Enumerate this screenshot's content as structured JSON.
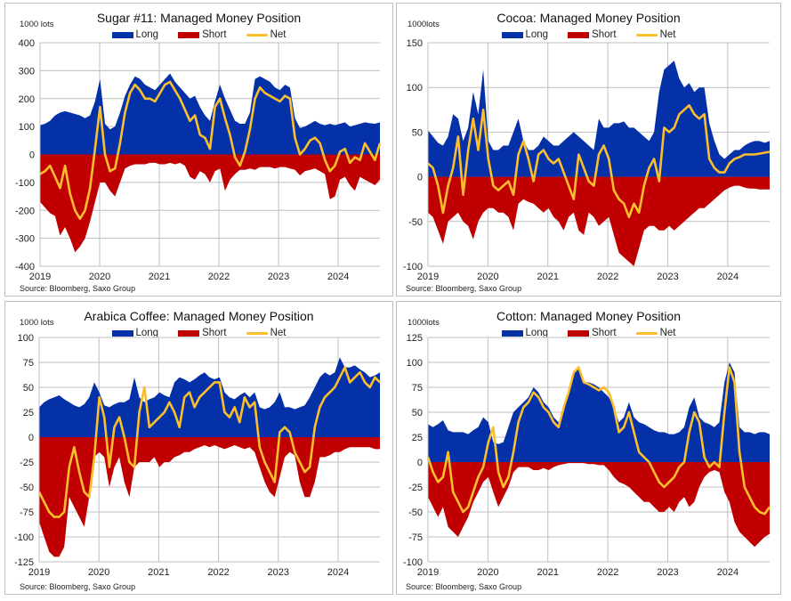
{
  "colors": {
    "long": "#0431A8",
    "short": "#C00000",
    "net": "#FBBF2E",
    "grid": "#BFBFBF"
  },
  "legend": {
    "long": "Long",
    "short": "Short",
    "net": "Net"
  },
  "source": "Source: Bloomberg,  Saxo Group",
  "chart_data": [
    {
      "id": "sugar",
      "type": "area",
      "title": "Sugar #11: Managed Money Position",
      "ylabel": "1000 lots",
      "ylim": [
        -400,
        400
      ],
      "yticks": [
        400,
        300,
        200,
        100,
        0,
        -100,
        -200,
        -300,
        -400
      ],
      "xticks": [
        "2019",
        "2020",
        "2021",
        "2022",
        "2023",
        "2024"
      ],
      "x_start": 2019.0,
      "x_end": 2024.7,
      "legend_position": "top-center",
      "grid": true,
      "series": [
        {
          "name": "Long",
          "kind": "area",
          "values": [
            105,
            110,
            120,
            140,
            150,
            155,
            150,
            145,
            140,
            130,
            140,
            190,
            270,
            110,
            90,
            100,
            150,
            210,
            250,
            280,
            270,
            250,
            240,
            230,
            250,
            270,
            290,
            260,
            240,
            220,
            200,
            210,
            170,
            140,
            120,
            190,
            250,
            200,
            160,
            120,
            110,
            110,
            150,
            270,
            280,
            270,
            260,
            240,
            230,
            250,
            240,
            130,
            95,
            100,
            110,
            120,
            110,
            105,
            110,
            105,
            110,
            115,
            100,
            105,
            110,
            115,
            112,
            110,
            115
          ]
        },
        {
          "name": "Short",
          "kind": "area",
          "values": [
            -170,
            -190,
            -210,
            -220,
            -290,
            -260,
            -300,
            -350,
            -330,
            -300,
            -240,
            -170,
            -100,
            -100,
            -130,
            -150,
            -100,
            -50,
            -40,
            -35,
            -35,
            -35,
            -30,
            -30,
            -35,
            -35,
            -30,
            -35,
            -30,
            -40,
            -80,
            -90,
            -60,
            -70,
            -100,
            -60,
            -50,
            -130,
            -90,
            -70,
            -55,
            -55,
            -50,
            -55,
            -45,
            -45,
            -45,
            -50,
            -45,
            -45,
            -50,
            -55,
            -75,
            -60,
            -55,
            -50,
            -60,
            -70,
            -160,
            -150,
            -90,
            -80,
            -110,
            -130,
            -80,
            -90,
            -100,
            -110,
            -90
          ]
        },
        {
          "name": "Net",
          "kind": "line",
          "values": [
            -70,
            -60,
            -40,
            -80,
            -120,
            -40,
            -140,
            -200,
            -230,
            -200,
            -120,
            20,
            170,
            0,
            -60,
            -50,
            40,
            150,
            220,
            250,
            230,
            200,
            200,
            190,
            220,
            250,
            260,
            230,
            200,
            160,
            120,
            140,
            70,
            60,
            20,
            170,
            200,
            130,
            70,
            -10,
            -40,
            10,
            90,
            200,
            240,
            220,
            210,
            200,
            190,
            210,
            200,
            60,
            0,
            20,
            50,
            60,
            40,
            -20,
            -60,
            -40,
            10,
            20,
            -30,
            -10,
            -20,
            40,
            10,
            -20,
            40
          ]
        }
      ]
    },
    {
      "id": "cocoa",
      "type": "area",
      "title": "Cocoa: Managed Money Position",
      "ylabel": "1000lots",
      "ylim": [
        -100,
        150
      ],
      "yticks": [
        150,
        100,
        50,
        0,
        -50,
        -100
      ],
      "xticks": [
        "2019",
        "2020",
        "2021",
        "2022",
        "2023",
        "2024"
      ],
      "x_start": 2019.0,
      "x_end": 2024.7,
      "legend_position": "top-center",
      "grid": true,
      "series": [
        {
          "name": "Long",
          "kind": "area",
          "values": [
            52,
            45,
            38,
            35,
            45,
            70,
            65,
            40,
            55,
            95,
            70,
            120,
            40,
            30,
            30,
            35,
            35,
            50,
            65,
            40,
            30,
            30,
            35,
            45,
            40,
            35,
            35,
            40,
            45,
            50,
            45,
            40,
            35,
            30,
            65,
            55,
            55,
            60,
            60,
            62,
            55,
            55,
            50,
            45,
            40,
            50,
            95,
            120,
            125,
            130,
            110,
            100,
            105,
            95,
            100,
            100,
            60,
            40,
            25,
            20,
            25,
            30,
            30,
            35,
            38,
            40,
            40,
            38,
            40
          ]
        },
        {
          "name": "Short",
          "kind": "area",
          "values": [
            -40,
            -45,
            -60,
            -75,
            -50,
            -45,
            -40,
            -50,
            -55,
            -70,
            -50,
            -40,
            -35,
            -35,
            -40,
            -40,
            -45,
            -60,
            -30,
            -25,
            -28,
            -30,
            -35,
            -40,
            -35,
            -45,
            -50,
            -60,
            -45,
            -40,
            -60,
            -65,
            -40,
            -45,
            -55,
            -50,
            -45,
            -65,
            -85,
            -90,
            -95,
            -100,
            -80,
            -60,
            -55,
            -55,
            -60,
            -60,
            -55,
            -60,
            -55,
            -50,
            -45,
            -40,
            -35,
            -35,
            -30,
            -25,
            -20,
            -15,
            -12,
            -10,
            -10,
            -12,
            -13,
            -13,
            -14,
            -14,
            -14
          ]
        },
        {
          "name": "Net",
          "kind": "line",
          "values": [
            15,
            10,
            -10,
            -40,
            -10,
            10,
            45,
            -20,
            30,
            65,
            30,
            75,
            20,
            -10,
            -15,
            -10,
            -5,
            -20,
            25,
            40,
            20,
            -5,
            25,
            30,
            20,
            15,
            20,
            5,
            -10,
            -25,
            25,
            10,
            -5,
            -10,
            25,
            35,
            20,
            -15,
            -25,
            -30,
            -45,
            -30,
            -40,
            -10,
            10,
            20,
            -5,
            55,
            50,
            55,
            70,
            75,
            80,
            70,
            65,
            70,
            20,
            10,
            5,
            5,
            15,
            20,
            22,
            25,
            25,
            25,
            26,
            27,
            28
          ]
        }
      ]
    },
    {
      "id": "coffee",
      "type": "area",
      "title": "Arabica  Coffee: Managed Money Position",
      "ylabel": "1000 lots",
      "ylim": [
        -125,
        100
      ],
      "yticks": [
        100,
        75,
        50,
        25,
        0,
        -25,
        -50,
        -75,
        -100,
        -125
      ],
      "xticks": [
        "2019",
        "2020",
        "2021",
        "2022",
        "2023",
        "2024"
      ],
      "x_start": 2019.0,
      "x_end": 2024.7,
      "legend_position": "top-center",
      "grid": true,
      "series": [
        {
          "name": "Long",
          "kind": "area",
          "values": [
            30,
            35,
            38,
            40,
            42,
            38,
            35,
            32,
            30,
            33,
            40,
            55,
            45,
            32,
            30,
            33,
            35,
            35,
            38,
            60,
            40,
            35,
            38,
            40,
            45,
            42,
            40,
            55,
            60,
            58,
            55,
            58,
            62,
            65,
            60,
            58,
            60,
            45,
            40,
            38,
            42,
            45,
            40,
            45,
            30,
            28,
            30,
            35,
            45,
            30,
            30,
            28,
            30,
            32,
            40,
            50,
            60,
            65,
            62,
            65,
            80,
            70,
            70,
            72,
            68,
            65,
            60,
            62,
            65
          ]
        },
        {
          "name": "Short",
          "kind": "area",
          "values": [
            -85,
            -100,
            -115,
            -120,
            -120,
            -110,
            -60,
            -70,
            -80,
            -90,
            -60,
            -20,
            -15,
            -20,
            -50,
            -30,
            -20,
            -45,
            -60,
            -30,
            -25,
            -25,
            -25,
            -20,
            -30,
            -25,
            -25,
            -20,
            -18,
            -15,
            -15,
            -12,
            -10,
            -8,
            -10,
            -8,
            -10,
            -12,
            -10,
            -8,
            -10,
            -12,
            -10,
            -15,
            -30,
            -45,
            -55,
            -60,
            -40,
            -20,
            -15,
            -18,
            -45,
            -60,
            -60,
            -45,
            -20,
            -20,
            -18,
            -15,
            -15,
            -12,
            -10,
            -10,
            -10,
            -10,
            -10,
            -12,
            -12
          ]
        },
        {
          "name": "Net",
          "kind": "line",
          "values": [
            -55,
            -65,
            -75,
            -80,
            -80,
            -75,
            -30,
            -10,
            -35,
            -55,
            -60,
            -20,
            40,
            20,
            -30,
            10,
            20,
            0,
            -25,
            -30,
            25,
            50,
            10,
            15,
            20,
            25,
            35,
            25,
            10,
            40,
            45,
            30,
            40,
            45,
            50,
            55,
            55,
            25,
            20,
            30,
            15,
            40,
            30,
            35,
            -10,
            -25,
            -35,
            -45,
            5,
            10,
            5,
            -15,
            -25,
            -35,
            -30,
            10,
            30,
            40,
            45,
            50,
            60,
            70,
            55,
            60,
            65,
            55,
            50,
            60,
            55
          ]
        }
      ]
    },
    {
      "id": "cotton",
      "type": "area",
      "title": "Cotton: Managed Money Position",
      "ylabel": "1000lots",
      "ylim": [
        -100,
        125
      ],
      "yticks": [
        125,
        100,
        75,
        50,
        25,
        0,
        -25,
        -50,
        -75,
        -100
      ],
      "xticks": [
        "2019",
        "2020",
        "2021",
        "2022",
        "2023",
        "2024"
      ],
      "x_start": 2019.0,
      "x_end": 2024.7,
      "legend_position": "top-center",
      "grid": true,
      "series": [
        {
          "name": "Long",
          "kind": "area",
          "values": [
            38,
            35,
            38,
            42,
            32,
            30,
            30,
            30,
            28,
            32,
            35,
            45,
            40,
            20,
            18,
            20,
            35,
            50,
            55,
            60,
            65,
            75,
            70,
            60,
            55,
            45,
            40,
            50,
            70,
            90,
            95,
            80,
            80,
            78,
            75,
            70,
            65,
            55,
            40,
            45,
            60,
            45,
            40,
            38,
            35,
            32,
            30,
            30,
            28,
            28,
            30,
            35,
            55,
            65,
            45,
            40,
            38,
            35,
            40,
            80,
            100,
            90,
            35,
            30,
            30,
            28,
            30,
            30,
            28
          ]
        },
        {
          "name": "Short",
          "kind": "area",
          "values": [
            -35,
            -45,
            -55,
            -45,
            -65,
            -70,
            -75,
            -65,
            -55,
            -40,
            -30,
            -20,
            -15,
            -30,
            -45,
            -35,
            -25,
            -10,
            -5,
            -5,
            -5,
            -8,
            -8,
            -6,
            -8,
            -5,
            -3,
            -2,
            -1,
            -1,
            -1,
            -1,
            -2,
            -2,
            -3,
            -3,
            -8,
            -15,
            -20,
            -22,
            -25,
            -30,
            -35,
            -40,
            -40,
            -45,
            -50,
            -50,
            -45,
            -50,
            -40,
            -35,
            -45,
            -40,
            -25,
            -15,
            -10,
            -8,
            -10,
            -30,
            -40,
            -60,
            -70,
            -75,
            -80,
            -85,
            -80,
            -75,
            -72
          ]
        },
        {
          "name": "Net",
          "kind": "line",
          "values": [
            5,
            -10,
            -20,
            -15,
            10,
            -30,
            -40,
            -50,
            -45,
            -30,
            -15,
            -5,
            20,
            35,
            -10,
            -25,
            -15,
            10,
            40,
            55,
            60,
            70,
            65,
            55,
            50,
            40,
            35,
            55,
            70,
            90,
            95,
            80,
            78,
            75,
            72,
            75,
            70,
            55,
            30,
            35,
            50,
            30,
            10,
            5,
            0,
            -10,
            -20,
            -25,
            -20,
            -15,
            -5,
            0,
            30,
            50,
            40,
            5,
            -5,
            0,
            -5,
            50,
            95,
            80,
            10,
            -25,
            -35,
            -45,
            -50,
            -52,
            -45
          ]
        }
      ]
    }
  ]
}
